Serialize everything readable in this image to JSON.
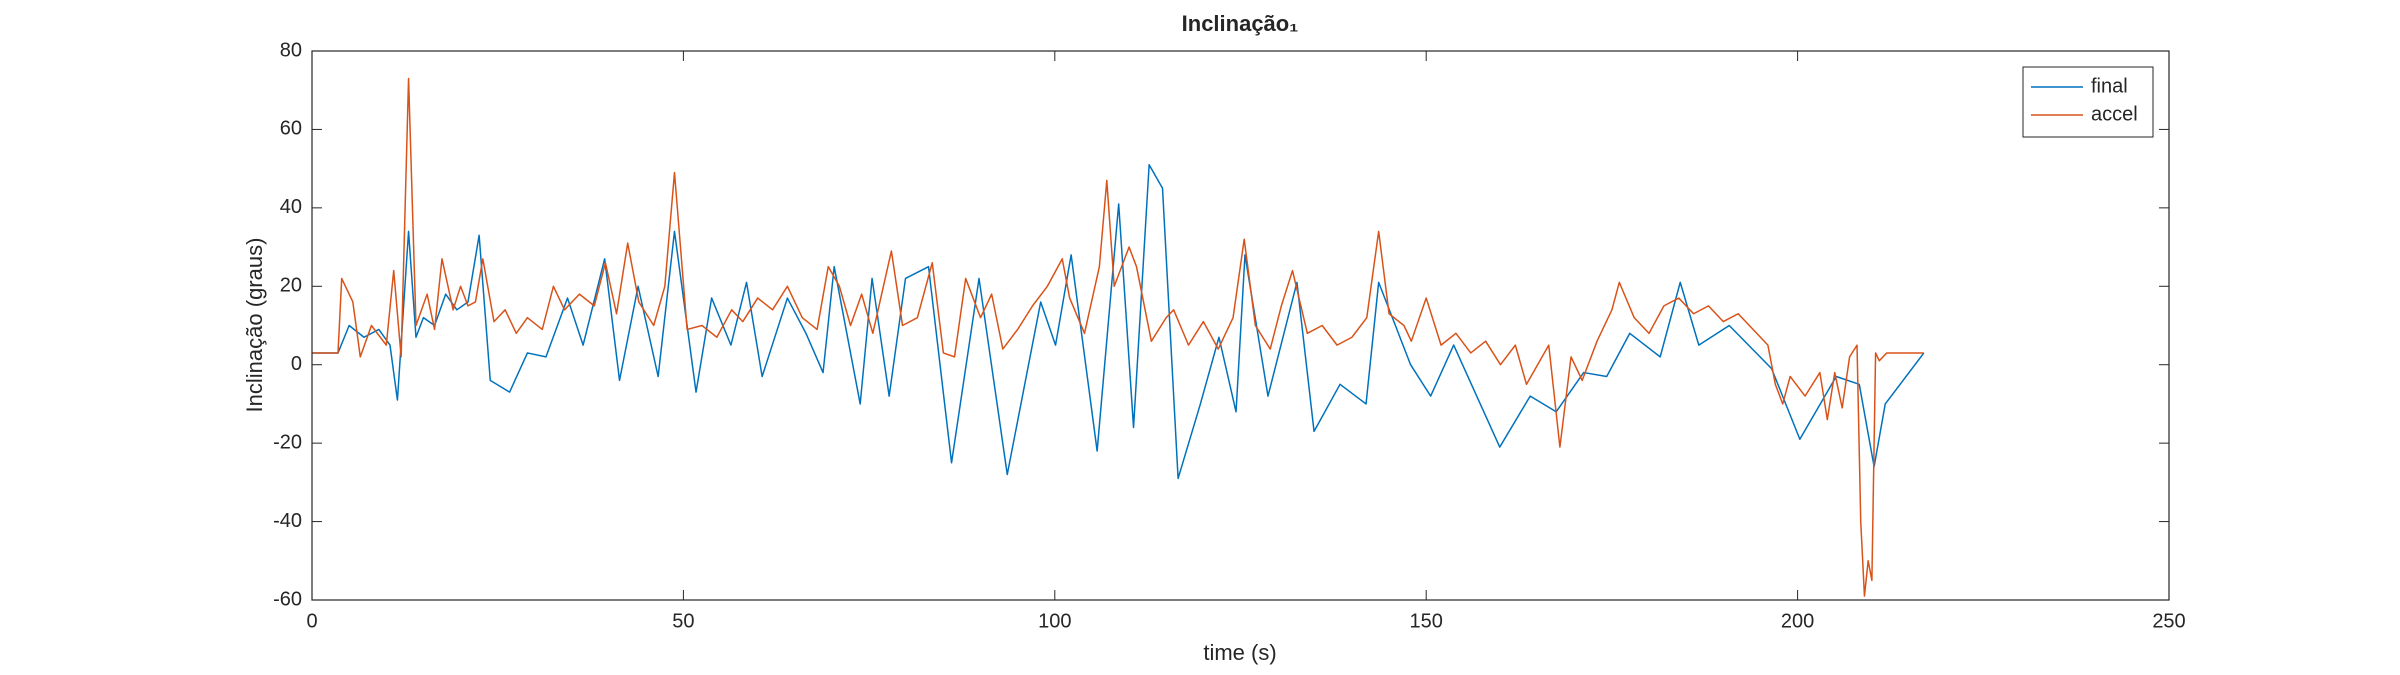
{
  "chart_data": {
    "type": "line",
    "title": "Inclinação₁",
    "xlabel": "time (s)",
    "ylabel": "Inclinação (graus)",
    "xlim": [
      0,
      250
    ],
    "xticks": [
      0,
      50,
      100,
      150,
      200,
      250
    ],
    "ylim": [
      -60,
      80
    ],
    "yticks": [
      -60,
      -40,
      -20,
      0,
      20,
      40,
      60,
      80
    ],
    "legend": "northeast",
    "grid": false,
    "series": [
      {
        "name": "final",
        "color": "#0072BD",
        "x": [
          0,
          3.5,
          5,
          7,
          9,
          10.5,
          11.5,
          13,
          14,
          15,
          16.5,
          18,
          19.5,
          21,
          22.5,
          24,
          26.6,
          29,
          31.5,
          34.4,
          36.5,
          39.4,
          41.4,
          43.9,
          46.6,
          48.8,
          51.7,
          53.8,
          56.4,
          58.5,
          60.6,
          64,
          66.5,
          68.8,
          70.3,
          73.8,
          75.4,
          77.7,
          79.9,
          83,
          86.1,
          89.8,
          93.6,
          98.1,
          100.1,
          102.2,
          105.7,
          108.6,
          110.6,
          112.7,
          114.5,
          116.6,
          119.6,
          122.1,
          124.4,
          125.6,
          128.7,
          132.6,
          134.9,
          138.4,
          141.9,
          143.6,
          147.9,
          150.6,
          153.7,
          159.9,
          164,
          167.5,
          171.2,
          174.3,
          177.4,
          181.5,
          184.2,
          186.7,
          190.8,
          196.5,
          200.3,
          205.2,
          208.3,
          210.3,
          211.8,
          217
        ],
        "values": [
          3,
          3,
          10,
          7,
          9,
          5,
          -9,
          34,
          7,
          12,
          10,
          18,
          14,
          16,
          33,
          -4,
          -7,
          3,
          2,
          17,
          5,
          27,
          -4,
          20,
          -3,
          34,
          -7,
          17,
          5,
          21,
          -3,
          17,
          8,
          -2,
          25,
          -10,
          22,
          -8,
          22,
          25,
          -25,
          22,
          -28,
          16,
          5,
          28,
          -22,
          41,
          -16,
          51,
          45,
          -29,
          -10,
          7,
          -12,
          28,
          -8,
          21,
          -17,
          -5,
          -10,
          21,
          0,
          -8,
          5,
          -21,
          -8,
          -12,
          -2,
          -3,
          8,
          2,
          21,
          5,
          10,
          -1,
          -19,
          -3,
          -5,
          -26,
          -10,
          3
        ]
      },
      {
        "name": "accel",
        "color": "#D95319",
        "x": [
          0,
          3.5,
          4,
          5.5,
          6.5,
          8,
          10,
          11,
          12,
          13,
          14,
          15.5,
          16.5,
          17.5,
          19,
          20,
          21,
          22,
          23,
          24.5,
          26,
          27.5,
          29,
          31,
          32.5,
          34,
          36,
          38,
          39.5,
          41,
          42.5,
          44,
          46,
          47.5,
          48.8,
          50.5,
          52.5,
          54.5,
          56.5,
          58,
          60,
          62,
          64,
          66,
          68,
          69.5,
          71,
          72.5,
          74,
          75.5,
          78,
          79.5,
          81.5,
          83.5,
          85,
          86.5,
          88,
          90,
          91.5,
          93,
          95,
          97,
          99,
          101,
          102,
          104,
          106,
          107,
          108,
          110,
          111,
          113,
          115,
          116,
          118,
          120,
          122,
          124,
          125.5,
          127,
          129,
          130.5,
          132,
          134,
          136,
          138,
          140,
          142,
          143.6,
          145,
          147,
          148,
          150,
          152,
          154,
          156,
          158,
          160,
          162,
          163.5,
          165,
          166.5,
          168,
          169.5,
          171,
          173,
          175,
          176,
          178,
          180,
          182,
          184,
          186,
          188,
          190,
          192,
          194,
          196,
          197,
          198,
          199,
          201,
          203,
          204,
          205,
          206,
          207,
          208,
          208.5,
          209,
          209.5,
          210,
          210.5,
          211,
          212,
          217
        ],
        "values": [
          3,
          3,
          22,
          16,
          2,
          10,
          5,
          24,
          2,
          73,
          10,
          18,
          9,
          27,
          14,
          20,
          15,
          16,
          27,
          11,
          14,
          8,
          12,
          9,
          20,
          14,
          18,
          15,
          26,
          13,
          31,
          16,
          10,
          20,
          49,
          9,
          10,
          7,
          14,
          11,
          17,
          14,
          20,
          12,
          9,
          25,
          20,
          10,
          18,
          8,
          29,
          10,
          12,
          26,
          3,
          2,
          22,
          12,
          18,
          4,
          9,
          15,
          20,
          27,
          17,
          8,
          25,
          47,
          20,
          30,
          25,
          6,
          12,
          14,
          5,
          11,
          4,
          12,
          32,
          10,
          4,
          15,
          24,
          8,
          10,
          5,
          7,
          12,
          34,
          13,
          10,
          6,
          17,
          5,
          8,
          3,
          6,
          0,
          5,
          -5,
          0,
          5,
          -21,
          2,
          -4,
          6,
          14,
          21,
          12,
          8,
          15,
          17,
          13,
          15,
          11,
          13,
          9,
          5,
          -5,
          -10,
          -3,
          -8,
          -2,
          -14,
          -2,
          -11,
          2,
          5,
          -40,
          -59,
          -50,
          -55,
          3,
          1,
          3,
          3
        ]
      }
    ]
  }
}
